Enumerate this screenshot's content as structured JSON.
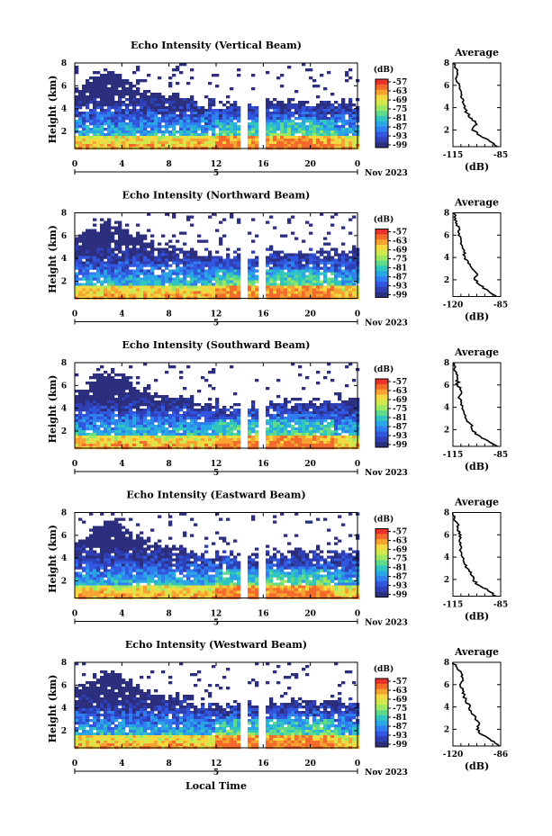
{
  "figure": {
    "xlabel": "Local Time",
    "date_label": "Nov 2023",
    "day_label": "5",
    "colorbar_unit": "(dB)",
    "colorbar_ticks": [
      "-57",
      "-63",
      "-69",
      "-75",
      "-81",
      "-87",
      "-93",
      "-99"
    ],
    "colorbar_colors": [
      "#e8322a",
      "#f36a2a",
      "#f7a332",
      "#f5d740",
      "#d2e84f",
      "#9ee763",
      "#5fd98a",
      "#30c6bf",
      "#2aa6e6",
      "#2f7ff1",
      "#3157e0",
      "#2f3fb5",
      "#2c2f7d"
    ],
    "average_title": "Average",
    "average_xlabel": "(dB)"
  },
  "chart_data": [
    {
      "type": "heatmap",
      "title": "Echo Intensity (Vertical Beam)",
      "ylabel": "Height (km)",
      "x_ticks": [
        "0",
        "4",
        "8",
        "12",
        "16",
        "20",
        "0"
      ],
      "y_ticks": [
        "8",
        "6",
        "4",
        "2"
      ],
      "xlim_hours": [
        0,
        24
      ],
      "ylim_km": [
        0.5,
        8
      ],
      "data_gap_hours": [
        [
          14.2,
          14.7
        ],
        [
          15.6,
          16.3
        ]
      ],
      "profile": {
        "title": "Average",
        "x_ticks": [
          "-115",
          "-85"
        ],
        "xlim": [
          -115,
          -85
        ],
        "y_ticks": [
          "8",
          "6",
          "4",
          "2"
        ],
        "height_km": [
          0.5,
          1.0,
          1.5,
          2.0,
          2.5,
          3.0,
          3.5,
          4.0,
          4.5,
          5.0,
          5.5,
          6.0,
          6.5,
          7.0,
          7.5,
          8.0
        ],
        "avg_db": [
          -87,
          -92,
          -98,
          -103,
          -100,
          -103,
          -106,
          -108,
          -109,
          -110,
          -110,
          -111,
          -113,
          -112,
          -113,
          -115
        ]
      }
    },
    {
      "type": "heatmap",
      "title": "Echo Intensity (Northward Beam)",
      "ylabel": "Height (km)",
      "x_ticks": [
        "0",
        "4",
        "8",
        "12",
        "16",
        "20",
        "0"
      ],
      "y_ticks": [
        "8",
        "6",
        "4",
        "2"
      ],
      "xlim_hours": [
        0,
        24
      ],
      "ylim_km": [
        0.5,
        8
      ],
      "data_gap_hours": [
        [
          14.2,
          14.7
        ],
        [
          15.6,
          16.3
        ]
      ],
      "profile": {
        "title": "Average",
        "x_ticks": [
          "-120",
          "-85"
        ],
        "xlim": [
          -120,
          -85
        ],
        "y_ticks": [
          "8",
          "6",
          "4",
          "2"
        ],
        "height_km": [
          0.5,
          1.0,
          1.5,
          2.0,
          2.5,
          3.0,
          3.5,
          4.0,
          4.5,
          5.0,
          5.5,
          6.0,
          6.5,
          7.0,
          7.5,
          8.0
        ],
        "avg_db": [
          -88,
          -94,
          -100,
          -104,
          -102,
          -106,
          -109,
          -111,
          -112,
          -113,
          -114,
          -116,
          -115,
          -117,
          -118,
          -120
        ]
      }
    },
    {
      "type": "heatmap",
      "title": "Echo Intensity (Southward Beam)",
      "ylabel": "Height (km)",
      "x_ticks": [
        "0",
        "4",
        "8",
        "12",
        "16",
        "20",
        "0"
      ],
      "y_ticks": [
        "8",
        "6",
        "4",
        "2"
      ],
      "xlim_hours": [
        0,
        24
      ],
      "ylim_km": [
        0.5,
        8
      ],
      "data_gap_hours": [
        [
          14.2,
          14.7
        ],
        [
          15.6,
          16.3
        ]
      ],
      "profile": {
        "title": "Average",
        "x_ticks": [
          "-115",
          "-85"
        ],
        "xlim": [
          -115,
          -85
        ],
        "y_ticks": [
          "8",
          "6",
          "4",
          "2"
        ],
        "height_km": [
          0.5,
          1.0,
          1.5,
          2.0,
          2.5,
          3.0,
          3.5,
          4.0,
          4.5,
          5.0,
          5.5,
          6.0,
          6.5,
          7.0,
          7.5,
          8.0
        ],
        "avg_db": [
          -87,
          -93,
          -99,
          -103,
          -104,
          -107,
          -108,
          -109,
          -110,
          -111,
          -110,
          -112,
          -112,
          -113,
          -114,
          -115
        ]
      }
    },
    {
      "type": "heatmap",
      "title": "Echo Intensity (Eastward Beam)",
      "ylabel": "Height (km)",
      "x_ticks": [
        "0",
        "4",
        "8",
        "12",
        "16",
        "20",
        "0"
      ],
      "y_ticks": [
        "8",
        "6",
        "4",
        "2"
      ],
      "xlim_hours": [
        0,
        24
      ],
      "ylim_km": [
        0.5,
        8
      ],
      "data_gap_hours": [
        [
          14.2,
          14.7
        ],
        [
          15.6,
          16.3
        ]
      ],
      "profile": {
        "title": "Average",
        "x_ticks": [
          "-115",
          "-85"
        ],
        "xlim": [
          -115,
          -85
        ],
        "y_ticks": [
          "8",
          "6",
          "4",
          "2"
        ],
        "height_km": [
          0.5,
          1.0,
          1.5,
          2.0,
          2.5,
          3.0,
          3.5,
          4.0,
          4.5,
          5.0,
          5.5,
          6.0,
          6.5,
          7.0,
          7.5,
          8.0
        ],
        "avg_db": [
          -88,
          -93,
          -99,
          -102,
          -104,
          -106,
          -108,
          -109,
          -110,
          -110,
          -111,
          -110,
          -112,
          -112,
          -114,
          -115
        ]
      }
    },
    {
      "type": "heatmap",
      "title": "Echo Intensity (Westward Beam)",
      "ylabel": "Height (km)",
      "x_ticks": [
        "0",
        "4",
        "8",
        "12",
        "16",
        "20",
        "0"
      ],
      "y_ticks": [
        "8",
        "6",
        "4",
        "2"
      ],
      "xlim_hours": [
        0,
        24
      ],
      "ylim_km": [
        0.5,
        8
      ],
      "data_gap_hours": [
        [
          14.2,
          14.7
        ],
        [
          15.6,
          16.3
        ]
      ],
      "profile": {
        "title": "Average",
        "x_ticks": [
          "-120",
          "-86"
        ],
        "xlim": [
          -120,
          -86
        ],
        "y_ticks": [
          "8",
          "6",
          "4",
          "2"
        ],
        "height_km": [
          0.5,
          1.0,
          1.5,
          2.0,
          2.5,
          3.0,
          3.5,
          4.0,
          4.5,
          5.0,
          5.5,
          6.0,
          6.5,
          7.0,
          7.5,
          8.0
        ],
        "avg_db": [
          -87,
          -93,
          -99,
          -103,
          -101,
          -104,
          -107,
          -108,
          -111,
          -112,
          -113,
          -115,
          -113,
          -114,
          -117,
          -120
        ]
      }
    }
  ]
}
